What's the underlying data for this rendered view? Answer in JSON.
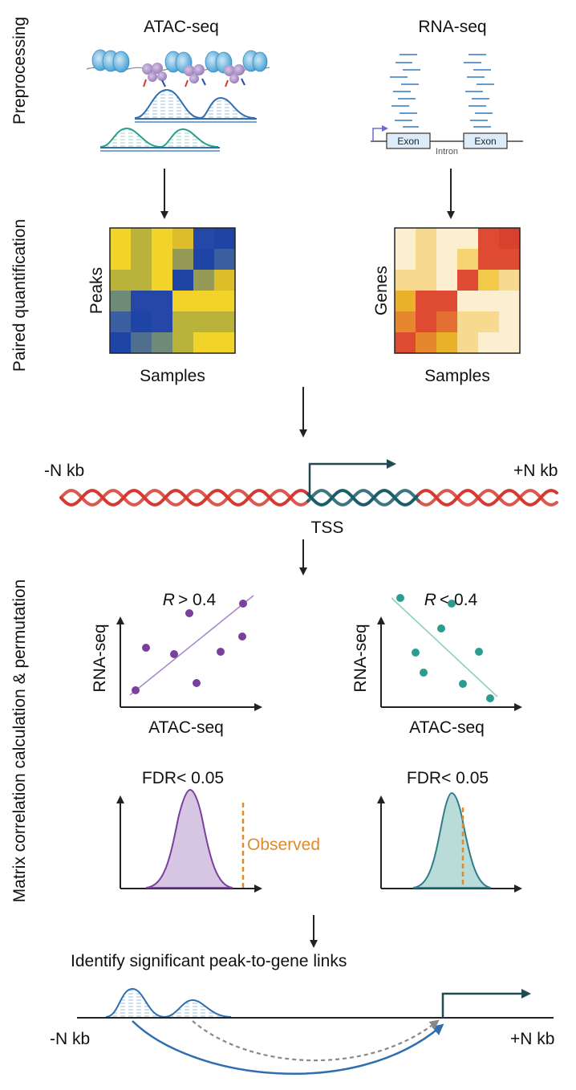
{
  "sections": {
    "preprocessing": "Preprocessing",
    "paired_quantification": "Paired quantification",
    "matrix_correlation": "Matrix correlation calculation & permutation"
  },
  "preprocessing": {
    "atac_title": "ATAC-seq",
    "rna_title": "RNA-seq",
    "exon1": "Exon",
    "exon2": "Exon",
    "intron": "Intron"
  },
  "quantification": {
    "atac_row_label": "Peaks",
    "atac_col_label": "Samples",
    "rna_row_label": "Genes",
    "rna_col_label": "Samples",
    "atac_colors": [
      [
        "#f2d32a",
        "#b9b33b",
        "#f2d32a",
        "#ddbd2a",
        "#2447a8",
        "#1e44a6"
      ],
      [
        "#f2d32a",
        "#b9b33b",
        "#f2d32a",
        "#959a55",
        "#1e44a6",
        "#3b5ea0"
      ],
      [
        "#b9b33b",
        "#b9b33b",
        "#f2d32a",
        "#1e44a6",
        "#959a55",
        "#ddbd2a"
      ],
      [
        "#6f8a77",
        "#2447a8",
        "#2447a8",
        "#f2d32a",
        "#f2d32a",
        "#f2d32a"
      ],
      [
        "#3b5ea0",
        "#1e44a6",
        "#2447a8",
        "#b9b33b",
        "#b9b33b",
        "#b9b33b"
      ],
      [
        "#1e44a6",
        "#506f8f",
        "#6f8a77",
        "#b9b33b",
        "#f2d32a",
        "#f2d32a"
      ]
    ],
    "rna_colors": [
      [
        "#fcefcf",
        "#f7d98f",
        "#fcefcf",
        "#fcefcf",
        "#de4a32",
        "#d9412f"
      ],
      [
        "#fcefcf",
        "#f7d98f",
        "#fcefcf",
        "#f7d472",
        "#de4a32",
        "#de4a32"
      ],
      [
        "#f7d98f",
        "#f7d98f",
        "#fcefcf",
        "#de4a32",
        "#f2c94a",
        "#f7d98f"
      ],
      [
        "#eab22b",
        "#de4a32",
        "#de4a32",
        "#fcefcf",
        "#fcefcf",
        "#fcefcf"
      ],
      [
        "#e6862d",
        "#de4a32",
        "#e36f33",
        "#f7d98f",
        "#f7d98f",
        "#fcefcf"
      ],
      [
        "#de4a32",
        "#e6862d",
        "#eab22b",
        "#f7d98f",
        "#fcefcf",
        "#fcefcf"
      ]
    ]
  },
  "dna": {
    "left_label": "-N kb",
    "right_label": "+N kb",
    "tss_label": "TSS"
  },
  "correlation": {
    "left": {
      "r_symbol": "R",
      "r_threshold": "> 0.4",
      "ylabel": "RNA-seq",
      "xlabel": "ATAC-seq"
    },
    "right": {
      "r_symbol": "R",
      "r_threshold": "< 0.4",
      "ylabel": "RNA-seq",
      "xlabel": "ATAC-seq"
    }
  },
  "permutation": {
    "left_fdr": "FDR< 0.05",
    "right_fdr": "FDR< 0.05",
    "observed_label": "Observed"
  },
  "links": {
    "title": "Identify significant peak-to-gene links",
    "left_label": "-N kb",
    "right_label": "+N kb"
  },
  "colors": {
    "atac_blue": "#2f6eb0",
    "teal": "#2a9d8f",
    "purple": "#7b3f9e",
    "orange": "#e08a2c",
    "dna_red": "#d6392f",
    "dna_teal": "#1b5e6a"
  }
}
